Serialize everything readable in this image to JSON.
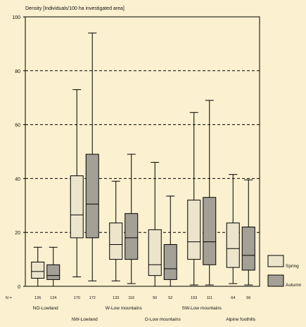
{
  "chart_data": {
    "type": "box",
    "ylabel": "Density [Individuals/100 ha investigated area]",
    "ylim": [
      0,
      100
    ],
    "yticks": [
      0,
      20,
      40,
      60,
      80,
      100
    ],
    "grid": "horizontal dashed",
    "n_prefix": "N =",
    "series": [
      {
        "name": "Spring",
        "color": "#ece5cc"
      },
      {
        "name": "Autumn",
        "color": "#a4a095"
      }
    ],
    "groups": [
      {
        "label": "NO-Lowland",
        "boxes": [
          {
            "series": "Spring",
            "n": "126",
            "min": 0,
            "q1": 3,
            "median": 5.5,
            "q3": 9,
            "max": 14.5
          },
          {
            "series": "Autumn",
            "n": "124",
            "min": 0,
            "q1": 2.5,
            "median": 4,
            "q3": 8,
            "max": 14.5
          }
        ]
      },
      {
        "label": "NW-Lowland",
        "boxes": [
          {
            "series": "Spring",
            "n": "170",
            "min": 3.5,
            "q1": 18,
            "median": 26.5,
            "q3": 41,
            "max": 73
          },
          {
            "series": "Autumn",
            "n": "172",
            "min": 2,
            "q1": 18,
            "median": 30.5,
            "q3": 49,
            "max": 94
          }
        ]
      },
      {
        "label": "W-Low mountains",
        "boxes": [
          {
            "series": "Spring",
            "n": "133",
            "min": 2,
            "q1": 10,
            "median": 15.5,
            "q3": 23.5,
            "max": 39
          },
          {
            "series": "Autumn",
            "n": "116",
            "min": 1,
            "q1": 10,
            "median": 18,
            "q3": 27,
            "max": 49
          }
        ]
      },
      {
        "label": "O-Low mountains",
        "boxes": [
          {
            "series": "Spring",
            "n": "50",
            "min": 0,
            "q1": 4,
            "median": 8,
            "q3": 21,
            "max": 46
          },
          {
            "series": "Autumn",
            "n": "52",
            "min": 0,
            "q1": 2.5,
            "median": 6.5,
            "q3": 15.5,
            "max": 33.5
          }
        ]
      },
      {
        "label": "SW-Low mountains",
        "boxes": [
          {
            "series": "Spring",
            "n": "163",
            "min": 0.5,
            "q1": 10,
            "median": 16.5,
            "q3": 32,
            "max": 64.5
          },
          {
            "series": "Autumn",
            "n": "111",
            "min": 0.5,
            "q1": 8,
            "median": 16.5,
            "q3": 33,
            "max": 69
          }
        ]
      },
      {
        "label": "Alpine foothills",
        "boxes": [
          {
            "series": "Spring",
            "n": "64",
            "min": 1,
            "q1": 7,
            "median": 14,
            "q3": 23.5,
            "max": 41.5
          },
          {
            "series": "Autumn",
            "n": "56",
            "min": 0.5,
            "q1": 6,
            "median": 11.5,
            "q3": 22,
            "max": 39.5
          }
        ]
      }
    ]
  }
}
